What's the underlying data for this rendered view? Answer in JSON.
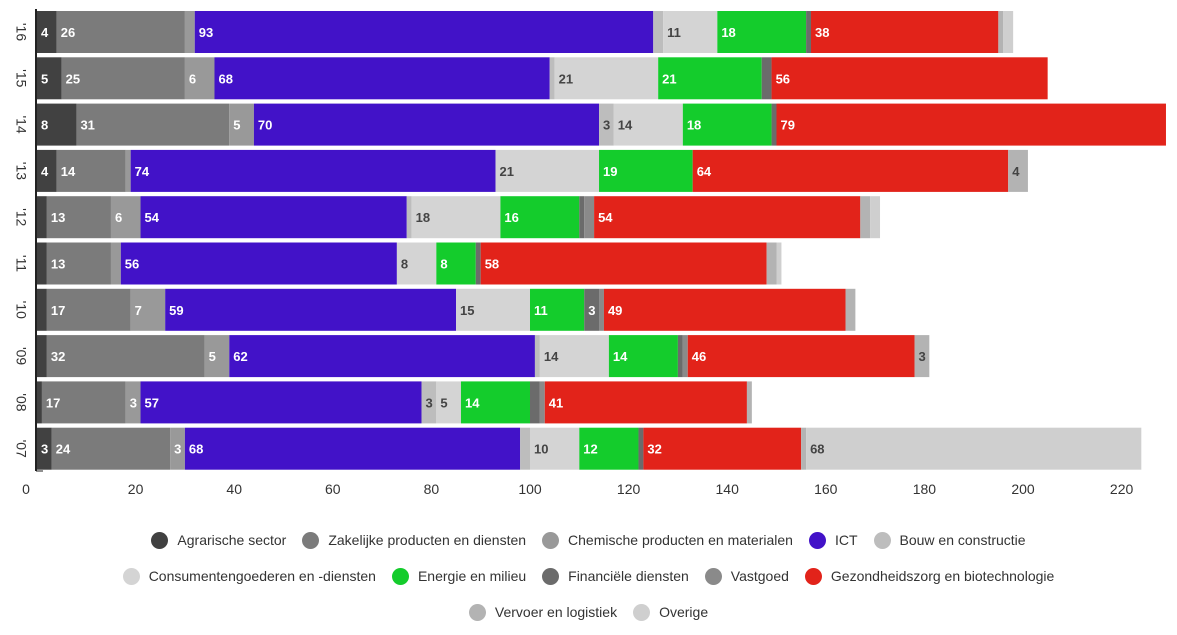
{
  "chart_data": {
    "type": "bar",
    "orientation": "horizontal",
    "stacked": true,
    "title": "",
    "xlabel": "",
    "ylabel": "",
    "xlim": [
      0,
      230
    ],
    "x_ticks": [
      0,
      20,
      40,
      60,
      80,
      100,
      120,
      140,
      160,
      180,
      200,
      220
    ],
    "grid": false,
    "legend_position": "bottom",
    "categories": [
      "'16",
      "'15",
      "'14",
      "'13",
      "'12",
      "'11",
      "'10",
      "'09",
      "'08",
      "'07"
    ],
    "series": [
      {
        "name": "Agrarische sector",
        "color": "#414141",
        "values": [
          4,
          5,
          8,
          4,
          2,
          2,
          2,
          2,
          1,
          3
        ],
        "labels": [
          "4",
          "5",
          "8",
          "4",
          "",
          "",
          "",
          "",
          "",
          "3"
        ]
      },
      {
        "name": "Zakelijke producten en diensten",
        "color": "#7b7b7b",
        "values": [
          26,
          25,
          31,
          14,
          13,
          13,
          17,
          32,
          17,
          24
        ],
        "labels": [
          "26",
          "25",
          "31",
          "14",
          "13",
          "13",
          "17",
          "32",
          "17",
          "24"
        ]
      },
      {
        "name": "Chemische producten en materialen",
        "color": "#999999",
        "values": [
          2,
          6,
          5,
          1,
          6,
          2,
          7,
          5,
          3,
          3
        ],
        "labels": [
          "",
          "6",
          "5",
          "",
          "6",
          "",
          "7",
          "5",
          "3",
          "3"
        ]
      },
      {
        "name": "ICT",
        "color": "#4212c8",
        "values": [
          93,
          68,
          70,
          74,
          54,
          56,
          59,
          62,
          57,
          68
        ],
        "labels": [
          "93",
          "68",
          "70",
          "74",
          "54",
          "56",
          "59",
          "62",
          "57",
          "68"
        ]
      },
      {
        "name": "Bouw en constructie",
        "color": "#bdbdbd",
        "values": [
          2,
          1,
          3,
          0,
          1,
          0,
          0,
          1,
          3,
          2
        ],
        "labels": [
          "",
          "",
          "3",
          "",
          "",
          "",
          "",
          "",
          "3",
          ""
        ]
      },
      {
        "name": "Consumentengoederen en -diensten",
        "color": "#d4d4d4",
        "values": [
          11,
          21,
          14,
          21,
          18,
          8,
          15,
          14,
          5,
          10
        ],
        "labels": [
          "11",
          "21",
          "14",
          "21",
          "18",
          "8",
          "15",
          "14",
          "5",
          "10"
        ]
      },
      {
        "name": "Energie en milieu",
        "color": "#14cc2c",
        "values": [
          18,
          21,
          18,
          19,
          16,
          8,
          11,
          14,
          14,
          12
        ],
        "labels": [
          "18",
          "21",
          "18",
          "19",
          "16",
          "8",
          "11",
          "14",
          "14",
          "12"
        ]
      },
      {
        "name": "Financiële diensten",
        "color": "#6b6b6b",
        "values": [
          1,
          2,
          1,
          0,
          1,
          1,
          3,
          1,
          2,
          1
        ],
        "labels": [
          "",
          "",
          "",
          "",
          "",
          "",
          "3",
          "",
          "",
          ""
        ]
      },
      {
        "name": "Vastgoed",
        "color": "#8a8a8a",
        "values": [
          0,
          0,
          0,
          0,
          2,
          0,
          1,
          1,
          1,
          0
        ],
        "labels": [
          "",
          "",
          "",
          "",
          "",
          "",
          "",
          "",
          "",
          ""
        ]
      },
      {
        "name": "Gezondheidszorg en biotechnologie",
        "color": "#e2231a",
        "values": [
          38,
          56,
          79,
          64,
          54,
          58,
          49,
          46,
          41,
          32
        ],
        "labels": [
          "38",
          "56",
          "79",
          "64",
          "54",
          "58",
          "49",
          "46",
          "41",
          "32"
        ]
      },
      {
        "name": "Vervoer en logistiek",
        "color": "#b3b3b3",
        "values": [
          1,
          0,
          0,
          4,
          2,
          2,
          2,
          3,
          1,
          1
        ],
        "labels": [
          "",
          "",
          "",
          "4",
          "",
          "",
          "",
          "3",
          "",
          ""
        ]
      },
      {
        "name": "Overige",
        "color": "#cfcfcf",
        "values": [
          2,
          0,
          0,
          0,
          2,
          1,
          0,
          0,
          0,
          68
        ],
        "labels": [
          "",
          "",
          "",
          "",
          "",
          "",
          "",
          "",
          "",
          "68"
        ]
      }
    ]
  }
}
